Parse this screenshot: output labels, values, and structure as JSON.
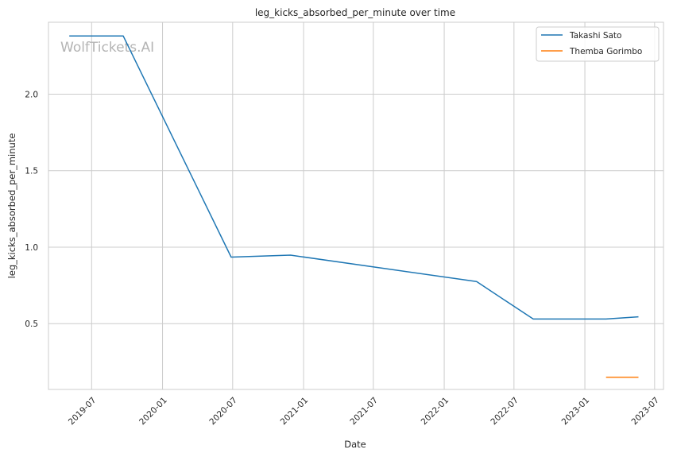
{
  "chart_data": {
    "type": "line",
    "title": "leg_kicks_absorbed_per_minute over time",
    "xlabel": "Date",
    "ylabel": "leg_kicks_absorbed_per_minute",
    "watermark": "WolfTickets.AI",
    "xlim": [
      "2019-03-11",
      "2023-07-24"
    ],
    "ylim": [
      0.07,
      2.47
    ],
    "x_ticks": [
      {
        "date": "2019-07-01",
        "label": "2019-07"
      },
      {
        "date": "2020-01-01",
        "label": "2020-01"
      },
      {
        "date": "2020-07-01",
        "label": "2020-07"
      },
      {
        "date": "2021-01-01",
        "label": "2021-01"
      },
      {
        "date": "2021-07-01",
        "label": "2021-07"
      },
      {
        "date": "2022-01-01",
        "label": "2022-01"
      },
      {
        "date": "2022-07-01",
        "label": "2022-07"
      },
      {
        "date": "2023-01-01",
        "label": "2023-01"
      },
      {
        "date": "2023-07-01",
        "label": "2023-07"
      }
    ],
    "y_ticks": [
      {
        "value": 0.5,
        "label": "0.5"
      },
      {
        "value": 1.0,
        "label": "1.0"
      },
      {
        "value": 1.5,
        "label": "1.5"
      },
      {
        "value": 2.0,
        "label": "2.0"
      }
    ],
    "grid": true,
    "legend_position": "top-right",
    "series": [
      {
        "name": "Takashi Sato",
        "color": "#1f77b4",
        "points": [
          {
            "x": "2019-05-04",
            "y": 2.38
          },
          {
            "x": "2019-09-21",
            "y": 2.38
          },
          {
            "x": "2020-06-27",
            "y": 0.935
          },
          {
            "x": "2020-11-28",
            "y": 0.948
          },
          {
            "x": "2022-03-26",
            "y": 0.775
          },
          {
            "x": "2022-08-20",
            "y": 0.53
          },
          {
            "x": "2023-02-25",
            "y": 0.53
          },
          {
            "x": "2023-05-20",
            "y": 0.545
          }
        ]
      },
      {
        "name": "Themba Gorimbo",
        "color": "#ff7f0e",
        "points": [
          {
            "x": "2023-02-25",
            "y": 0.15
          },
          {
            "x": "2023-05-20",
            "y": 0.15
          }
        ]
      }
    ]
  }
}
